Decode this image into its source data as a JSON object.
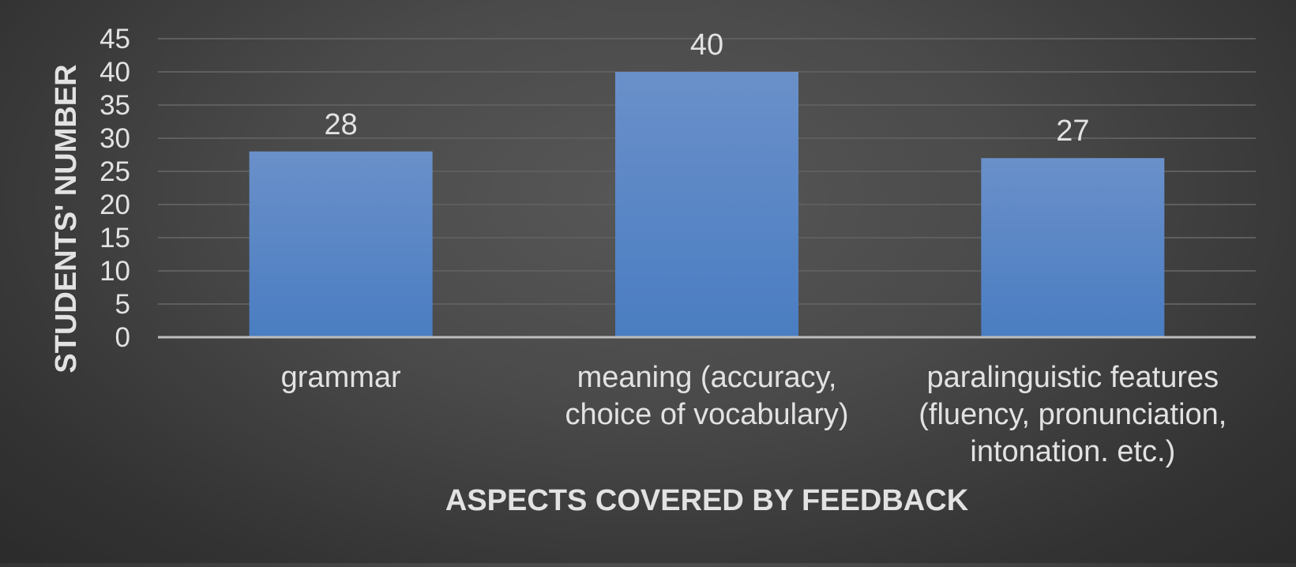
{
  "chart_data": {
    "type": "bar",
    "categories": [
      [
        "grammar"
      ],
      [
        "meaning (accuracy,",
        "choice of vocabulary)"
      ],
      [
        "paralinguistic features",
        "(fluency, pronunciation,",
        "intonation. etc.)"
      ]
    ],
    "values": [
      28,
      40,
      27
    ],
    "data_labels": [
      "28",
      "40",
      "27"
    ],
    "xlabel": "ASPECTS COVERED BY FEEDBACK",
    "ylabel": "STUDENTS' NUMBER",
    "ylim": [
      0,
      45
    ],
    "yticks": [
      "0",
      "5",
      "10",
      "15",
      "20",
      "25",
      "30",
      "35",
      "40",
      "45"
    ],
    "grid": true,
    "legend": "none",
    "colors": {
      "bar_top": "#6a90c9",
      "bar_bottom": "#4a7dc2",
      "grid": "#5e5e5e",
      "axis": "#bdbdbd",
      "text": "#e2e2e2"
    }
  }
}
